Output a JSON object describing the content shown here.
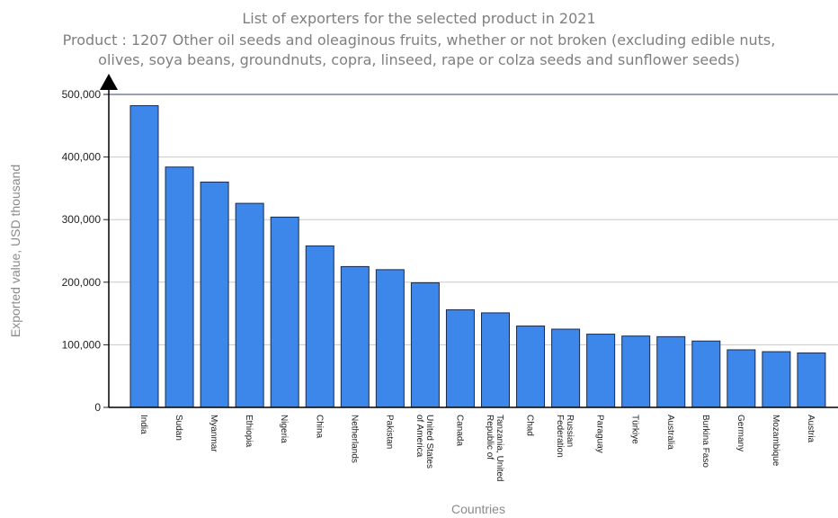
{
  "chart_data": {
    "type": "bar",
    "title_lines": [
      "List of exporters for the selected product in 2021",
      "Product : 1207 Other oil seeds and oleaginous fruits, whether or not broken (excluding edible nuts,",
      "olives, soya beans, groundnuts, copra, linseed, rape or colza seeds and sunflower seeds)"
    ],
    "xlabel": "Countries",
    "ylabel": "Exported value, USD thousand",
    "ylim": [
      0,
      500000
    ],
    "y_ticks": [
      0,
      100000,
      200000,
      300000,
      400000,
      500000
    ],
    "y_tick_labels": [
      "0",
      "100,000",
      "200,000",
      "300,000",
      "400,000",
      "500,000"
    ],
    "grid": true,
    "bar_color": "#3d87ea",
    "categories": [
      [
        "India"
      ],
      [
        "Sudan"
      ],
      [
        "Myanmar"
      ],
      [
        "Ethiopia"
      ],
      [
        "Nigeria"
      ],
      [
        "China"
      ],
      [
        "Netherlands"
      ],
      [
        "Pakistan"
      ],
      [
        "United States",
        "of America"
      ],
      [
        "Canada"
      ],
      [
        "Tanzania, United",
        "Republic of"
      ],
      [
        "Chad"
      ],
      [
        "Russian",
        "Federation"
      ],
      [
        "Paraguay"
      ],
      [
        "Türkiye"
      ],
      [
        "Australia"
      ],
      [
        "Burkina Faso"
      ],
      [
        "Germany"
      ],
      [
        "Mozambique"
      ],
      [
        "Austria"
      ]
    ],
    "values": [
      482000,
      384000,
      360000,
      326000,
      304000,
      258000,
      225000,
      220000,
      199000,
      156000,
      151000,
      130000,
      125000,
      117000,
      114000,
      113000,
      106000,
      92000,
      89000,
      87000
    ]
  }
}
